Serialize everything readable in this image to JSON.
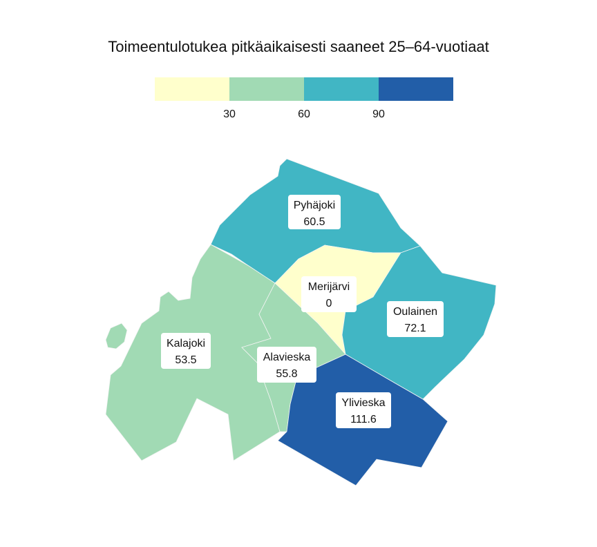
{
  "title": "Toimeentulotukea pitkäaikaisesti saaneet 25–64-vuotiaat",
  "legend": {
    "bins": [
      {
        "range": "<30",
        "color": "#ffffcc"
      },
      {
        "range": "30–60",
        "color": "#a1dab4"
      },
      {
        "range": "60–90",
        "color": "#41b6c4"
      },
      {
        "range": ">90",
        "color": "#225ea8"
      }
    ],
    "ticks": [
      "30",
      "60",
      "90"
    ]
  },
  "regions": [
    {
      "key": "pyhajoki",
      "name": "Pyhäjoki",
      "value": "60.5",
      "color": "#41b6c4"
    },
    {
      "key": "merijarvi",
      "name": "Merijärvi",
      "value": "0",
      "color": "#ffffcc"
    },
    {
      "key": "oulainen",
      "name": "Oulainen",
      "value": "72.1",
      "color": "#41b6c4"
    },
    {
      "key": "kalajoki",
      "name": "Kalajoki",
      "value": "53.5",
      "color": "#a1dab4"
    },
    {
      "key": "alavieska",
      "name": "Alavieska",
      "value": "55.8",
      "color": "#a1dab4"
    },
    {
      "key": "ylivieska",
      "name": "Ylivieska",
      "value": "111.6",
      "color": "#225ea8"
    }
  ]
}
